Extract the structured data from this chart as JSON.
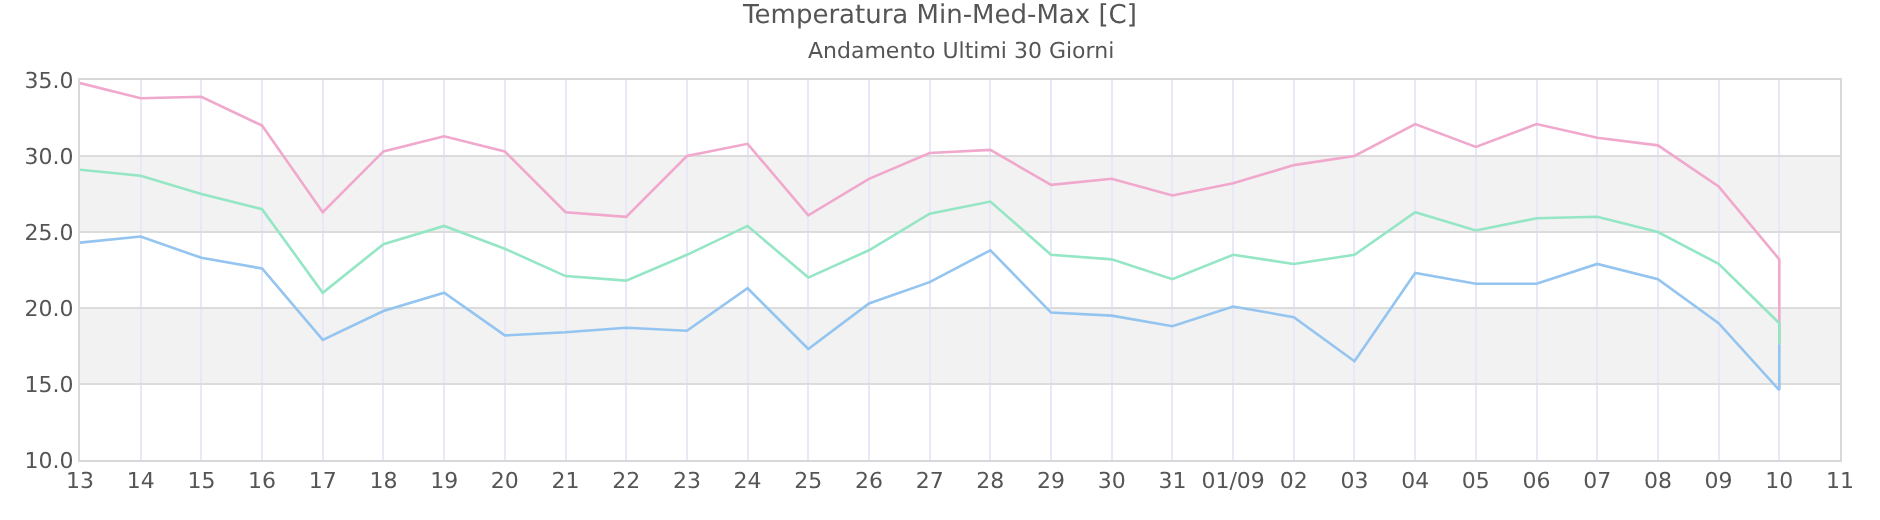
{
  "chart_data": {
    "type": "line",
    "title": "Temperatura Min-Med-Max [C]",
    "subtitle": "Andamento Ultimi 30 Giorni",
    "x": [
      "--08-13",
      "--08-14",
      "--08-15",
      "--08-16",
      "--08-17",
      "--08-18",
      "--08-19",
      "--08-20",
      "--08-21",
      "--08-22",
      "--08-23",
      "--08-24",
      "--08-25",
      "--08-26",
      "--08-27",
      "--08-28",
      "--08-29",
      "--08-30",
      "--08-31",
      "--09-01",
      "--09-02",
      "--09-03",
      "--09-04",
      "--09-05",
      "--09-06",
      "--09-07",
      "--09-08",
      "--09-09",
      "--09-10",
      "--09-10"
    ],
    "series": [
      {
        "color": "#f0a8cc",
        "values": [
          34.8,
          33.8,
          33.9,
          32.0,
          26.3,
          30.3,
          31.3,
          30.3,
          26.3,
          26.0,
          30.0,
          30.8,
          26.1,
          28.5,
          30.2,
          30.4,
          28.1,
          28.5,
          27.4,
          28.2,
          29.4,
          30.0,
          32.1,
          30.6,
          32.1,
          31.2,
          30.7,
          28.0,
          23.2,
          17.6
        ]
      },
      {
        "color": "#94e6c4",
        "values": [
          29.1,
          28.7,
          27.5,
          26.5,
          21.0,
          24.2,
          25.4,
          23.9,
          22.1,
          21.8,
          23.5,
          25.4,
          22.0,
          23.8,
          26.2,
          27.0,
          23.5,
          23.2,
          21.9,
          23.5,
          22.9,
          23.5,
          26.3,
          25.1,
          25.9,
          26.0,
          25.0,
          22.9,
          19.0,
          17.6
        ]
      },
      {
        "color": "#94c4f0",
        "values": [
          24.3,
          24.7,
          23.3,
          22.6,
          17.9,
          19.8,
          21.0,
          18.2,
          18.4,
          18.7,
          18.5,
          21.3,
          17.3,
          20.3,
          21.7,
          23.8,
          19.7,
          19.5,
          18.8,
          20.1,
          19.4,
          16.5,
          22.3,
          21.6,
          21.6,
          22.9,
          21.9,
          19.0,
          14.6,
          17.6
        ]
      }
    ],
    "xlim": [
      "--08-13",
      "--09-11"
    ],
    "xticks": [
      {
        "value": "--08-13",
        "label": "13"
      },
      {
        "value": "--08-14",
        "label": "14"
      },
      {
        "value": "--08-15",
        "label": "15"
      },
      {
        "value": "--08-16",
        "label": "16"
      },
      {
        "value": "--08-17",
        "label": "17"
      },
      {
        "value": "--08-18",
        "label": "18"
      },
      {
        "value": "--08-19",
        "label": "19"
      },
      {
        "value": "--08-20",
        "label": "20"
      },
      {
        "value": "--08-21",
        "label": "21"
      },
      {
        "value": "--08-22",
        "label": "22"
      },
      {
        "value": "--08-23",
        "label": "23"
      },
      {
        "value": "--08-24",
        "label": "24"
      },
      {
        "value": "--08-25",
        "label": "25"
      },
      {
        "value": "--08-26",
        "label": "26"
      },
      {
        "value": "--08-27",
        "label": "27"
      },
      {
        "value": "--08-28",
        "label": "28"
      },
      {
        "value": "--08-29",
        "label": "29"
      },
      {
        "value": "--08-30",
        "label": "30"
      },
      {
        "value": "--08-31",
        "label": "31"
      },
      {
        "value": "--09-01",
        "label": "01/09"
      },
      {
        "value": "--09-02",
        "label": "02"
      },
      {
        "value": "--09-03",
        "label": "03"
      },
      {
        "value": "--09-04",
        "label": "04"
      },
      {
        "value": "--09-05",
        "label": "05"
      },
      {
        "value": "--09-06",
        "label": "06"
      },
      {
        "value": "--09-07",
        "label": "07"
      },
      {
        "value": "--09-08",
        "label": "08"
      },
      {
        "value": "--09-09",
        "label": "09"
      },
      {
        "value": "--09-10",
        "label": "10"
      },
      {
        "value": "--09-11",
        "label": "11"
      }
    ],
    "ylim": [
      10,
      35
    ],
    "yticks": [
      {
        "value": 10,
        "label": "10.0"
      },
      {
        "value": 15,
        "label": "15.0"
      },
      {
        "value": 20,
        "label": "20.0"
      },
      {
        "value": 25,
        "label": "25.0"
      },
      {
        "value": 30,
        "label": "30.0"
      },
      {
        "value": 35,
        "label": "35.0"
      }
    ],
    "bands": [
      {
        "axis": "y",
        "from": 15,
        "to": 20,
        "color": "#f2f2f2"
      },
      {
        "axis": "y",
        "from": 25,
        "to": 30,
        "color": "#f2f2f2"
      }
    ],
    "grid": true,
    "line_style": "solid"
  }
}
